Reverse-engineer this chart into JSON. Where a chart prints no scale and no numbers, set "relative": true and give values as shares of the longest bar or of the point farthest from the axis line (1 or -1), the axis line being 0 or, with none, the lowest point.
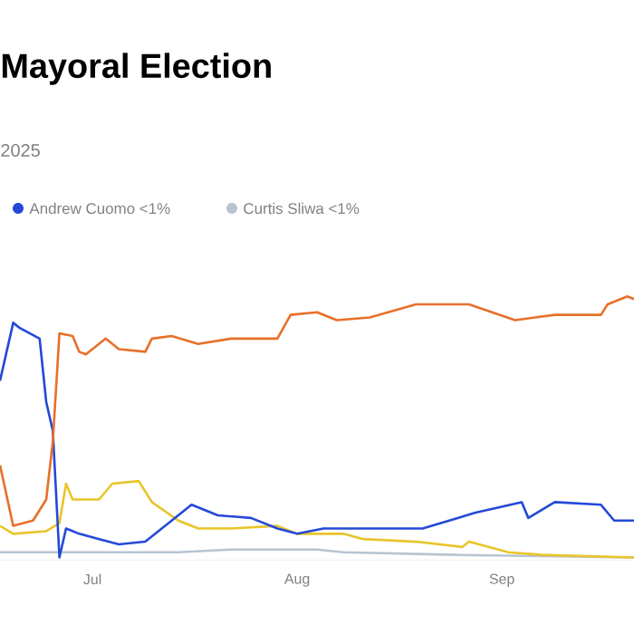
{
  "chart_data": {
    "type": "line",
    "title": "Mayoral Election",
    "subtitle": "2025",
    "relative": true,
    "legend": "top left",
    "xlim": [
      "2025-06-17",
      "2025-09-21"
    ],
    "xticks": [
      {
        "value": "2025-07-01",
        "label": "Jul"
      },
      {
        "value": "2025-08-01",
        "label": "Aug"
      },
      {
        "value": "2025-09-01",
        "label": "Sep"
      }
    ],
    "series": [
      {
        "color": "#e8702a",
        "x": [
          "2025-06-17",
          "2025-06-19",
          "2025-06-22",
          "2025-06-24",
          "2025-06-25",
          "2025-06-26",
          "2025-06-28",
          "2025-06-29",
          "2025-06-30",
          "2025-07-03",
          "2025-07-05",
          "2025-07-09",
          "2025-07-10",
          "2025-07-13",
          "2025-07-17",
          "2025-07-22",
          "2025-07-29",
          "2025-07-31",
          "2025-08-04",
          "2025-08-07",
          "2025-08-12",
          "2025-08-19",
          "2025-08-27",
          "2025-09-03",
          "2025-09-06",
          "2025-09-09",
          "2025-09-16",
          "2025-09-17",
          "2025-09-20",
          "2025-09-21"
        ],
        "values": [
          0.36,
          0.13,
          0.15,
          0.23,
          0.45,
          0.86,
          0.85,
          0.79,
          0.78,
          0.84,
          0.8,
          0.79,
          0.84,
          0.85,
          0.82,
          0.84,
          0.84,
          0.93,
          0.94,
          0.91,
          0.92,
          0.97,
          0.97,
          0.91,
          0.92,
          0.93,
          0.93,
          0.97,
          1.0,
          0.99
        ]
      },
      {
        "name": "Andrew Cuomo <1%",
        "color": "#2449d8",
        "x": [
          "2025-06-17",
          "2025-06-19",
          "2025-06-20",
          "2025-06-23",
          "2025-06-24",
          "2025-06-25",
          "2025-06-26",
          "2025-06-27",
          "2025-06-29",
          "2025-07-02",
          "2025-07-05",
          "2025-07-09",
          "2025-07-13",
          "2025-07-16",
          "2025-07-20",
          "2025-07-25",
          "2025-07-29",
          "2025-08-01",
          "2025-08-05",
          "2025-08-11",
          "2025-08-20",
          "2025-08-28",
          "2025-09-04",
          "2025-09-05",
          "2025-09-09",
          "2025-09-16",
          "2025-09-18",
          "2025-09-21"
        ],
        "values": [
          0.68,
          0.9,
          0.88,
          0.84,
          0.6,
          0.49,
          0.01,
          0.12,
          0.1,
          0.08,
          0.06,
          0.07,
          0.15,
          0.21,
          0.17,
          0.16,
          0.12,
          0.1,
          0.12,
          0.12,
          0.12,
          0.18,
          0.22,
          0.16,
          0.22,
          0.21,
          0.15,
          0.15
        ]
      },
      {
        "color": "#e8c52a",
        "x": [
          "2025-06-17",
          "2025-06-19",
          "2025-06-24",
          "2025-06-26",
          "2025-06-27",
          "2025-06-28",
          "2025-07-02",
          "2025-07-04",
          "2025-07-08",
          "2025-07-10",
          "2025-07-14",
          "2025-07-17",
          "2025-07-22",
          "2025-07-29",
          "2025-08-01",
          "2025-08-08",
          "2025-08-11",
          "2025-08-19",
          "2025-08-26",
          "2025-08-27",
          "2025-09-02",
          "2025-09-07",
          "2025-09-21"
        ],
        "values": [
          0.13,
          0.1,
          0.11,
          0.14,
          0.29,
          0.23,
          0.23,
          0.29,
          0.3,
          0.22,
          0.15,
          0.12,
          0.12,
          0.13,
          0.1,
          0.1,
          0.08,
          0.07,
          0.05,
          0.07,
          0.03,
          0.02,
          0.01
        ]
      },
      {
        "name": "Curtis Sliwa <1%",
        "color": "#b8c4d0",
        "x": [
          "2025-06-17",
          "2025-07-03",
          "2025-07-14",
          "2025-07-22",
          "2025-08-04",
          "2025-08-08",
          "2025-08-25",
          "2025-09-21"
        ],
        "values": [
          0.03,
          0.03,
          0.03,
          0.04,
          0.04,
          0.03,
          0.02,
          0.01
        ]
      }
    ]
  }
}
